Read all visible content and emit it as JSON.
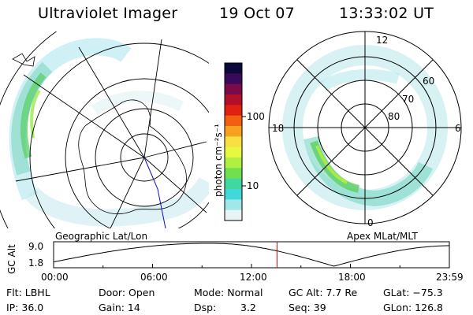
{
  "header": {
    "title": "Ultraviolet Imager",
    "date": "19 Oct 07",
    "time": "13:33:02 UT"
  },
  "colorbar": {
    "unit_label": "photon cm⁻²s⁻¹",
    "ticks": [
      "100",
      "10"
    ],
    "colors": [
      "#0a0a3a",
      "#3a0a5a",
      "#7a0a4a",
      "#b0102a",
      "#e02010",
      "#f06010",
      "#f8a020",
      "#f8e040",
      "#e8f840",
      "#b0f040",
      "#70e050",
      "#40d8a0",
      "#40d8d8",
      "#a0e8e8",
      "#e8f4f4"
    ]
  },
  "left_map": {
    "label": "Geographic Lat/Lon"
  },
  "right_map": {
    "label": "Apex MLat/MLT",
    "mlt_labels": [
      "12",
      "18",
      "6",
      "0"
    ],
    "lat_labels": [
      "60",
      "70",
      "80"
    ]
  },
  "altitude_plot": {
    "axis_label": "GC Alt",
    "y_ticks": [
      "9.0",
      "1.8"
    ],
    "time_ticks": [
      "00:00",
      "06:00",
      "12:00",
      "18:00",
      "23:59"
    ],
    "marker_time_hours": 13.55
  },
  "info": {
    "flt": "Flt: LBHL",
    "ip": "IP: 36.0",
    "door": "Door: Open",
    "gain": "Gain: 14",
    "mode": "Mode: Normal",
    "dsp_label": "Dsp:",
    "dsp_value": "3.2",
    "gc_alt": "GC Alt: 7.7 Re",
    "seq": "Seq: 39",
    "glat": "GLat: −75.3",
    "glon": "GLon: 126.8"
  }
}
